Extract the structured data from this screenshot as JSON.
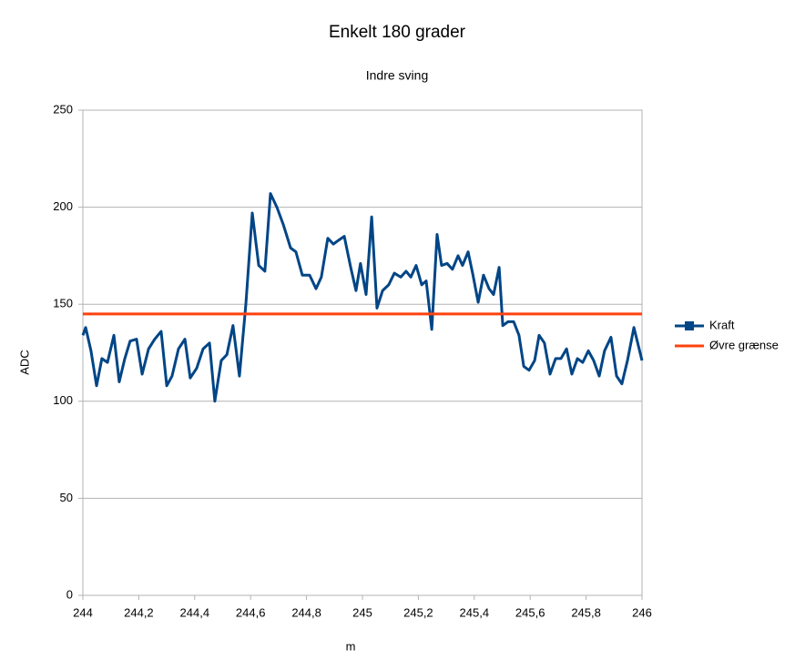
{
  "chart_data": {
    "type": "line",
    "title": "Enkelt 180 grader",
    "subtitle": "Indre sving",
    "x_label": "m",
    "y_label": "ADC",
    "xlim": [
      244,
      246
    ],
    "xticks": [
      244,
      {
        "value": 244.2,
        "label": "244,2"
      },
      {
        "value": 244.4,
        "label": "244,4"
      },
      {
        "value": 244.6,
        "label": "244,6"
      },
      {
        "value": 244.8,
        "label": "244,8"
      },
      245,
      {
        "value": 245.2,
        "label": "245,2"
      },
      {
        "value": 245.4,
        "label": "245,4"
      },
      {
        "value": 245.6,
        "label": "245,6"
      },
      {
        "value": 245.8,
        "label": "245,8"
      },
      246
    ],
    "ylim": [
      0,
      250
    ],
    "yticks": [
      0,
      50,
      100,
      150,
      200,
      250
    ],
    "grid": true,
    "legend": "right",
    "series": [
      {
        "name": "Kraft",
        "color": "#004586",
        "marker": "square",
        "x": [
          244.0,
          244.01,
          244.029,
          244.049,
          244.068,
          244.088,
          244.111,
          244.13,
          244.15,
          244.169,
          244.192,
          244.212,
          244.235,
          244.257,
          244.28,
          244.3,
          244.319,
          244.342,
          244.365,
          244.384,
          244.407,
          244.43,
          244.453,
          244.472,
          244.495,
          244.515,
          244.537,
          244.56,
          244.583,
          244.606,
          244.629,
          244.651,
          244.671,
          244.694,
          244.717,
          244.743,
          244.762,
          244.785,
          244.811,
          244.834,
          244.853,
          244.876,
          244.896,
          244.915,
          244.935,
          244.958,
          244.977,
          244.993,
          245.013,
          245.033,
          245.052,
          245.072,
          245.094,
          245.114,
          245.137,
          245.156,
          245.173,
          245.192,
          245.212,
          245.228,
          245.248,
          245.267,
          245.283,
          245.303,
          245.322,
          245.342,
          245.358,
          245.378,
          245.394,
          245.414,
          245.433,
          245.453,
          245.469,
          245.489,
          245.502,
          245.521,
          245.541,
          245.56,
          245.577,
          245.596,
          245.616,
          245.632,
          245.651,
          245.671,
          245.691,
          245.71,
          245.73,
          245.749,
          245.769,
          245.788,
          245.808,
          245.827,
          245.847,
          245.866,
          245.889,
          245.909,
          245.928,
          245.948,
          245.971,
          246.0
        ],
        "values": [
          134,
          138,
          126,
          108,
          122,
          120,
          134,
          110,
          122,
          131,
          132,
          114,
          127,
          132,
          136,
          108,
          113,
          127,
          132,
          112,
          117,
          127,
          130,
          100,
          121,
          124,
          139,
          113,
          150,
          197,
          170,
          167,
          207,
          200,
          191,
          179,
          177,
          165,
          165,
          158,
          164,
          184,
          181,
          183,
          185,
          169,
          157,
          171,
          155,
          195,
          148,
          157,
          160,
          166,
          164,
          167,
          164,
          170,
          160,
          162,
          137,
          186,
          170,
          171,
          168,
          175,
          170,
          177,
          166,
          151,
          165,
          158,
          155,
          169,
          139,
          141,
          141,
          134,
          118,
          116,
          121,
          134,
          130,
          114,
          122,
          122,
          127,
          114,
          122,
          120,
          126,
          121,
          113,
          126,
          133,
          113,
          109,
          121,
          138,
          121
        ]
      },
      {
        "name": "Øvre grænse",
        "color": "#ff420e",
        "x": [
          244,
          246
        ],
        "values": [
          145,
          145
        ]
      }
    ]
  }
}
